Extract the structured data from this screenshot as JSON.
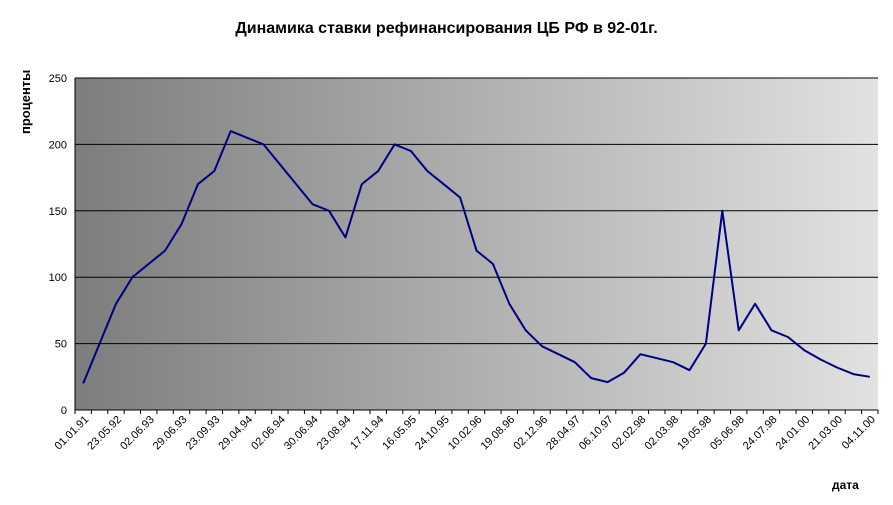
{
  "chart_data": {
    "type": "line",
    "title": "Динамика ставки рефинансирования ЦБ РФ в 92-01г.",
    "xlabel": "дата",
    "ylabel": "проценты",
    "ylim": [
      0,
      250
    ],
    "yticks": [
      0,
      50,
      100,
      150,
      200,
      250
    ],
    "grid": true,
    "legend": "none",
    "line_color": "#000080",
    "x_tick_labels": [
      "01.01.91",
      "23.05.92",
      "02.06.93",
      "29.06.93",
      "23.09.93",
      "29.04.94",
      "02.06.94",
      "30.06.94",
      "23.08.94",
      "17.11.94",
      "16.05.95",
      "24.10.95",
      "10.02.96",
      "19.08.96",
      "02.12.96",
      "28.04.97",
      "06.10.97",
      "02.02.98",
      "02.03.98",
      "19.05.98",
      "05.06.98",
      "24.07.98",
      "24.01.00",
      "21.03.00",
      "04.11.00"
    ],
    "series": [
      {
        "values": [
          20,
          50,
          80,
          100,
          110,
          120,
          140,
          170,
          180,
          210,
          205,
          200,
          185,
          170,
          155,
          150,
          130,
          170,
          180,
          200,
          195,
          180,
          170,
          160,
          120,
          110,
          80,
          60,
          48,
          42,
          36,
          24,
          21,
          28,
          42,
          39,
          36,
          30,
          50,
          150,
          60,
          80,
          60,
          55,
          45,
          38,
          32,
          27,
          25
        ]
      }
    ]
  }
}
